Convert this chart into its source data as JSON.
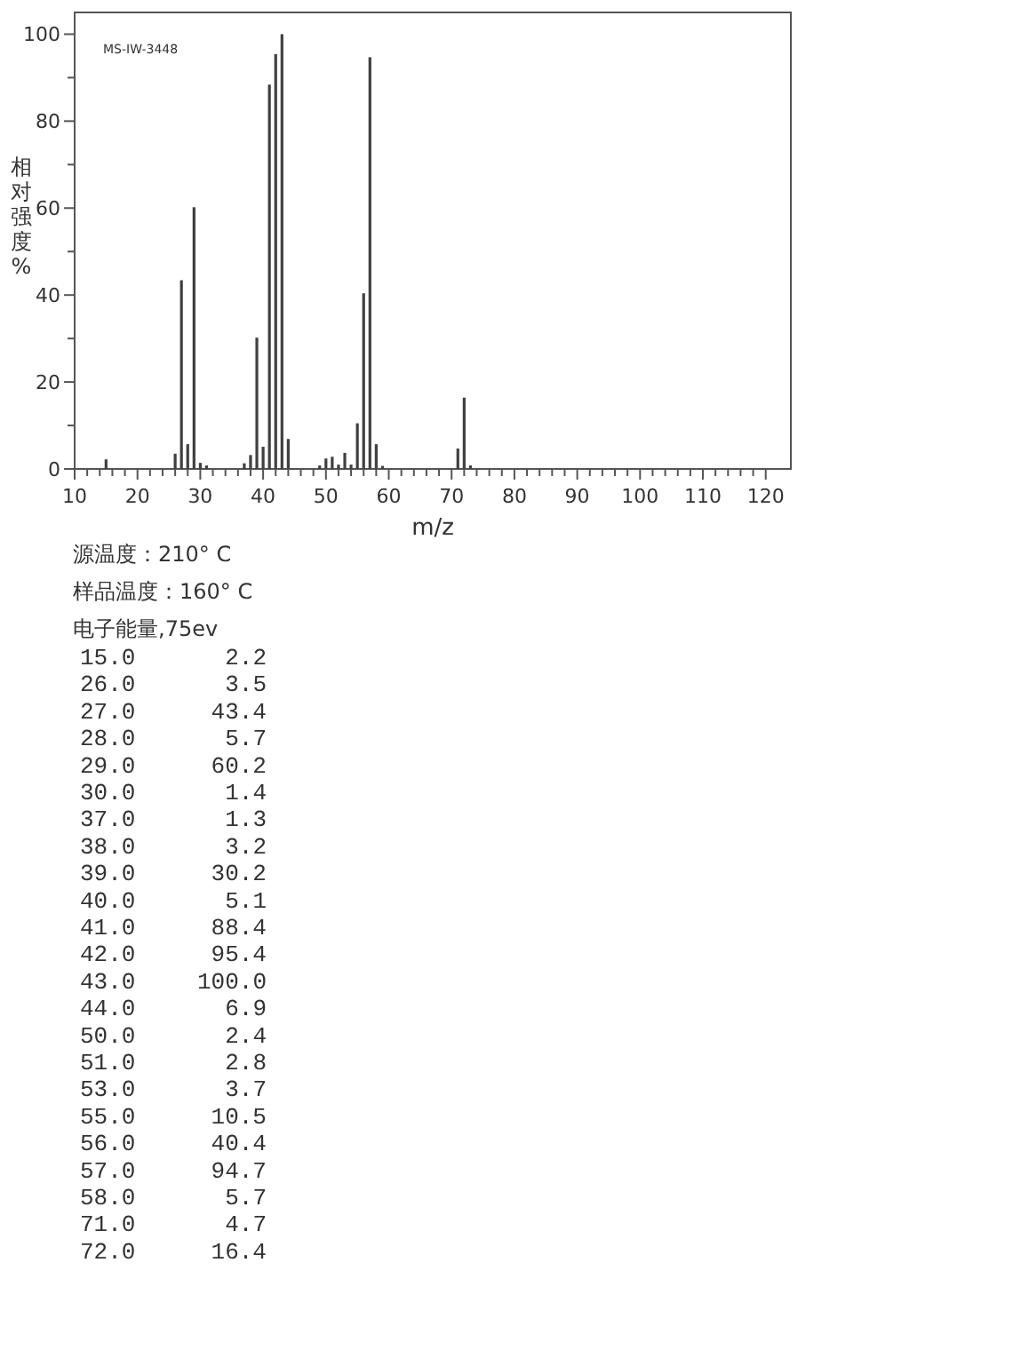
{
  "chart_data": [
    {
      "type": "bar",
      "ylabel": "相对强度%",
      "xlabel": "m/z",
      "annotations": [
        "MS-IW-3448"
      ],
      "x": [
        15,
        26,
        27,
        28,
        29,
        30,
        31,
        37,
        38,
        39,
        40,
        41,
        42,
        43,
        44,
        49,
        50,
        51,
        52,
        53,
        54,
        55,
        56,
        57,
        58,
        59,
        71,
        72,
        73
      ],
      "values": [
        2.2,
        3.5,
        43.4,
        5.7,
        60.2,
        1.4,
        0.8,
        1.3,
        3.2,
        30.2,
        5.1,
        88.4,
        95.4,
        100,
        6.9,
        0.8,
        2.4,
        2.8,
        1.0,
        3.7,
        1.0,
        10.5,
        40.4,
        94.7,
        5.7,
        0.7,
        4.7,
        16.4,
        0.8
      ],
      "color": "#404040",
      "xlim": [
        10,
        124
      ],
      "ylim": [
        0,
        105
      ],
      "xticks": [
        10,
        {
          "value": 12,
          "label": null
        },
        {
          "value": 14,
          "label": null
        },
        {
          "value": 16,
          "label": null
        },
        {
          "value": 18,
          "label": null
        },
        20,
        {
          "value": 22,
          "label": null
        },
        {
          "value": 24,
          "label": null
        },
        {
          "value": 26,
          "label": null
        },
        {
          "value": 28,
          "label": null
        },
        30,
        {
          "value": 32,
          "label": null
        },
        {
          "value": 34,
          "label": null
        },
        {
          "value": 36,
          "label": null
        },
        {
          "value": 38,
          "label": null
        },
        40,
        {
          "value": 42,
          "label": null
        },
        {
          "value": 44,
          "label": null
        },
        {
          "value": 46,
          "label": null
        },
        {
          "value": 48,
          "label": null
        },
        50,
        {
          "value": 52,
          "label": null
        },
        {
          "value": 54,
          "label": null
        },
        {
          "value": 56,
          "label": null
        },
        {
          "value": 58,
          "label": null
        },
        60,
        {
          "value": 62,
          "label": null
        },
        {
          "value": 64,
          "label": null
        },
        {
          "value": 66,
          "label": null
        },
        {
          "value": 68,
          "label": null
        },
        70,
        {
          "value": 72,
          "label": null
        },
        {
          "value": 74,
          "label": null
        },
        {
          "value": 76,
          "label": null
        },
        {
          "value": 78,
          "label": null
        },
        80,
        {
          "value": 82,
          "label": null
        },
        {
          "value": 84,
          "label": null
        },
        {
          "value": 86,
          "label": null
        },
        {
          "value": 88,
          "label": null
        },
        90,
        {
          "value": 92,
          "label": null
        },
        {
          "value": 94,
          "label": null
        },
        {
          "value": 96,
          "label": null
        },
        {
          "value": 98,
          "label": null
        },
        100,
        {
          "value": 102,
          "label": null
        },
        {
          "value": 104,
          "label": null
        },
        {
          "value": 106,
          "label": null
        },
        {
          "value": 108,
          "label": null
        },
        110,
        {
          "value": 112,
          "label": null
        },
        {
          "value": 114,
          "label": null
        },
        {
          "value": 116,
          "label": null
        },
        {
          "value": 118,
          "label": null
        },
        120
      ],
      "yticks": [
        0,
        {
          "value": 10,
          "label": null
        },
        20,
        {
          "value": 30,
          "label": null
        },
        40,
        {
          "value": 50,
          "label": null
        },
        60,
        {
          "value": 70,
          "label": null
        },
        80,
        {
          "value": 90,
          "label": null
        },
        100
      ],
      "grid": false
    },
    {
      "type": "other",
      "annotations": [
        "源温度：210° C",
        "样品温度：160° C",
        "电子能量,75ev"
      ],
      "categories": [
        "15.0",
        "26.0",
        "27.0",
        "28.0",
        "29.0",
        "30.0",
        "37.0",
        "38.0",
        "39.0",
        "40.0",
        "41.0",
        "42.0",
        "43.0",
        "44.0",
        "50.0",
        "51.0",
        "53.0",
        "55.0",
        "56.0",
        "57.0",
        "58.0",
        "71.0",
        "72.0"
      ],
      "value_labels": [
        "2.2",
        "3.5",
        "43.4",
        "5.7",
        "60.2",
        "1.4",
        "1.3",
        "3.2",
        "30.2",
        "5.1",
        "88.4",
        "95.4",
        "100.0",
        "6.9",
        "2.4",
        "2.8",
        "3.7",
        "10.5",
        "40.4",
        "94.7",
        "5.7",
        "4.7",
        "16.4"
      ]
    }
  ]
}
